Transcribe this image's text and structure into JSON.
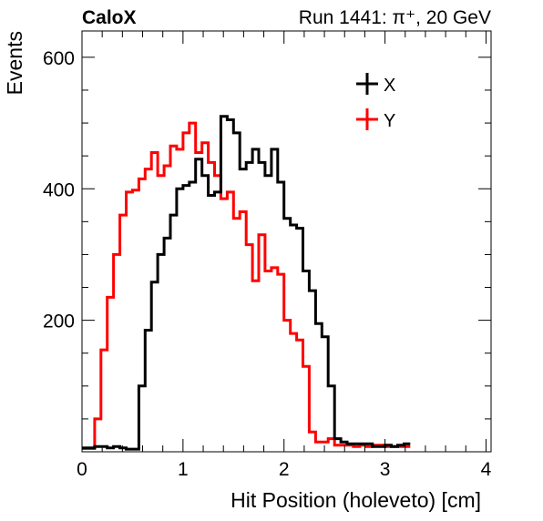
{
  "header": {
    "left": "CaloX",
    "right": "Run 1441: π⁺, 20 GeV"
  },
  "chart_data": {
    "type": "histogram",
    "xlabel": "Hit Position (holeveto) [cm]",
    "ylabel": "Events",
    "xlim": [
      0,
      4.05
    ],
    "ylim": [
      0,
      640
    ],
    "xticks": [
      0,
      1,
      2,
      3,
      4
    ],
    "yticks": [
      200,
      400,
      600
    ],
    "grid": false,
    "legend": "top-right",
    "bin_start": 0.0,
    "bin_width": 0.0625,
    "series": [
      {
        "name": "X",
        "color": "#000000",
        "values": [
          6,
          6,
          8,
          8,
          6,
          8,
          6,
          4,
          4,
          100,
          185,
          258,
          300,
          325,
          360,
          400,
          405,
          410,
          445,
          420,
          390,
          395,
          510,
          505,
          485,
          430,
          440,
          460,
          440,
          420,
          460,
          410,
          355,
          345,
          340,
          275,
          245,
          195,
          175,
          100,
          20,
          15,
          12,
          12,
          12,
          12,
          8,
          8,
          10,
          8,
          10,
          12
        ]
      },
      {
        "name": "Y",
        "color": "#ff0000",
        "values": [
          5,
          5,
          50,
          155,
          235,
          300,
          360,
          395,
          398,
          415,
          430,
          455,
          420,
          435,
          465,
          460,
          485,
          500,
          455,
          470,
          440,
          420,
          385,
          395,
          355,
          365,
          315,
          260,
          330,
          275,
          280,
          270,
          200,
          180,
          170,
          130,
          30,
          15,
          15,
          20,
          10,
          10,
          10,
          8,
          10,
          8,
          10,
          10,
          8,
          8,
          8,
          8
        ]
      }
    ]
  }
}
